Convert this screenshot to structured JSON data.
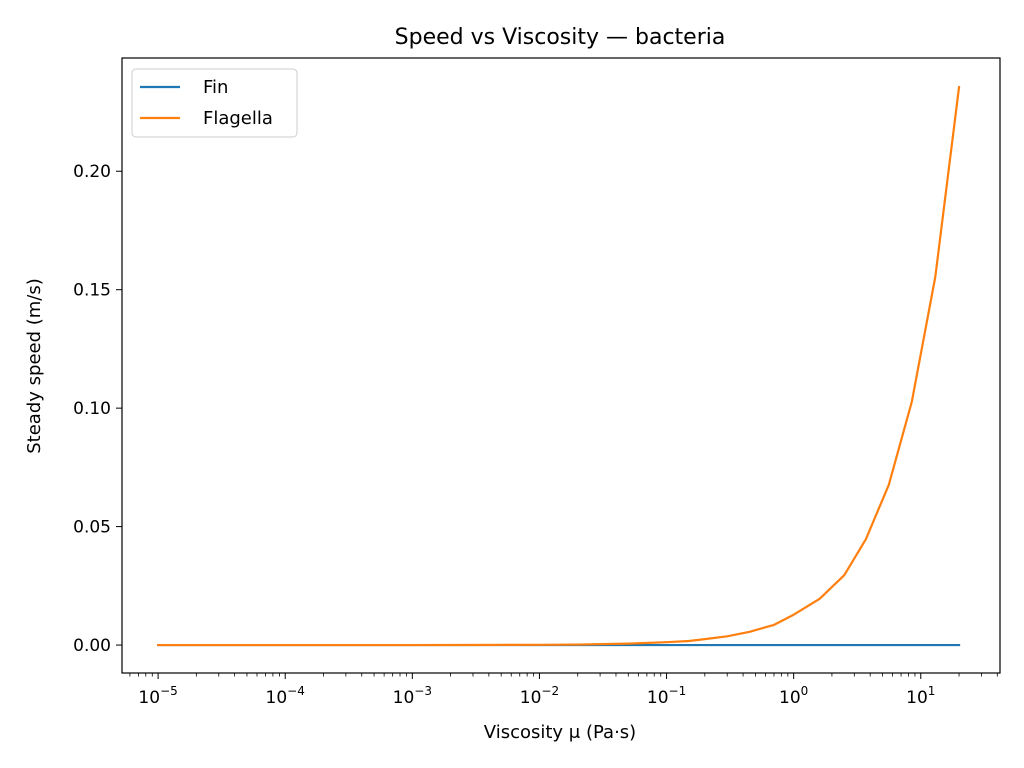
{
  "chart_data": {
    "type": "line",
    "title": "Speed vs Viscosity — bacteria",
    "xlabel": "Viscosity μ (Pa·s)",
    "ylabel": "Steady speed (m/s)",
    "xscale": "log",
    "xlim": [
      5.2e-06,
      42
    ],
    "ylim": [
      -0.0118,
      0.2478
    ],
    "xticks": [
      {
        "value": 1e-05,
        "exp": "−5"
      },
      {
        "value": 0.0001,
        "exp": "−4"
      },
      {
        "value": 0.001,
        "exp": "−3"
      },
      {
        "value": 0.01,
        "exp": "−2"
      },
      {
        "value": 0.1,
        "exp": "−1"
      },
      {
        "value": 1,
        "exp": "0"
      },
      {
        "value": 10,
        "exp": "1"
      }
    ],
    "yticks": [
      {
        "value": 0.0,
        "label": "0.00"
      },
      {
        "value": 0.05,
        "label": "0.05"
      },
      {
        "value": 0.1,
        "label": "0.10"
      },
      {
        "value": 0.15,
        "label": "0.15"
      },
      {
        "value": 0.2,
        "label": "0.20"
      }
    ],
    "grid": false,
    "legend_position": "top-left",
    "series": [
      {
        "name": "Fin",
        "color": "#1f77b4",
        "x": [
          1e-05,
          0.02,
          0.1,
          1,
          10,
          20
        ],
        "y": [
          0.0,
          0.0,
          0.0,
          0.0,
          0.0,
          0.0
        ]
      },
      {
        "name": "Flagella",
        "color": "#ff7f0e",
        "x": [
          1e-05,
          0.001,
          0.01,
          0.02,
          0.05,
          0.1,
          0.15,
          0.2,
          0.3,
          0.45,
          0.7,
          1.0,
          1.6,
          2.5,
          3.7,
          5.6,
          8.5,
          13.0,
          20.0
        ],
        "y": [
          0.0,
          0.0,
          0.0001,
          0.0002,
          0.0006,
          0.0012,
          0.0017,
          0.0025,
          0.0037,
          0.0056,
          0.0085,
          0.0128,
          0.0195,
          0.0295,
          0.0447,
          0.0676,
          0.1027,
          0.1553,
          0.2355
        ]
      }
    ]
  }
}
